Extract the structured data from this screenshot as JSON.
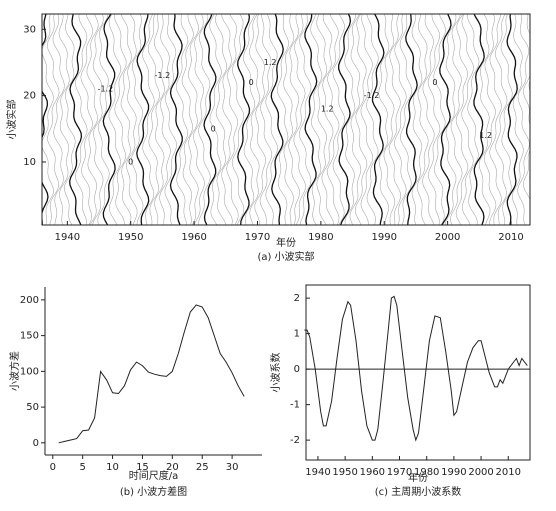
{
  "chart_data": [
    {
      "type": "contour",
      "xlabel": "年份",
      "ylabel": "小波实部",
      "caption": "(a) 小波实部",
      "xlim": [
        1936,
        2013
      ],
      "xticks": [
        1940,
        1950,
        1960,
        1970,
        1980,
        1990,
        2000,
        2010
      ],
      "ylim": [
        0.5,
        32.3
      ],
      "yticks": [
        10,
        20,
        30
      ],
      "annotations": [
        {
          "text": "-1.2",
          "x": 1946,
          "y": 21
        },
        {
          "text": "-1.2",
          "x": 1955,
          "y": 23
        },
        {
          "text": "1.2",
          "x": 1972,
          "y": 25
        },
        {
          "text": "0",
          "x": 1969,
          "y": 22
        },
        {
          "text": "0",
          "x": 1963,
          "y": 15
        },
        {
          "text": "1.2",
          "x": 1981,
          "y": 18
        },
        {
          "text": "-1.2",
          "x": 1988,
          "y": 20
        },
        {
          "text": "0",
          "x": 1998,
          "y": 22
        },
        {
          "text": "1.2",
          "x": 2006,
          "y": 14
        },
        {
          "text": "0",
          "x": 1950,
          "y": 10
        }
      ]
    },
    {
      "type": "line",
      "xlabel": "时间尺度/a",
      "ylabel": "小波方差",
      "caption": "(b) 小波方差图",
      "xlim": [
        -1.3,
        35
      ],
      "xticks": [
        0,
        5,
        10,
        15,
        20,
        25,
        30
      ],
      "ylim": [
        -17,
        218
      ],
      "yticks": [
        0,
        50,
        100,
        150,
        200
      ],
      "x": [
        1,
        2,
        3,
        4,
        5,
        6,
        7,
        8,
        9,
        10,
        11,
        12,
        13,
        14,
        15,
        16,
        17,
        18,
        19,
        20,
        21,
        22,
        23,
        24,
        25,
        26,
        27,
        28,
        29,
        30,
        31,
        32
      ],
      "series": [
        {
          "color": "#222222",
          "values": [
            0,
            2,
            4,
            6,
            17,
            18,
            35,
            100,
            88,
            70,
            69,
            80,
            102,
            113,
            108,
            99,
            96,
            94,
            93,
            100,
            125,
            155,
            183,
            193,
            190,
            175,
            150,
            125,
            113,
            98,
            80,
            65
          ]
        }
      ]
    },
    {
      "type": "line",
      "xlabel": "年份",
      "ylabel": "小波系数",
      "caption": "(c) 主周期小波系数",
      "xlim": [
        1935.6,
        2018
      ],
      "xticks": [
        1940,
        1950,
        1960,
        1970,
        1980,
        1990,
        2000,
        2010
      ],
      "ylim": [
        -2.56,
        2.37
      ],
      "yticks": [
        -2,
        -1,
        0,
        1,
        2
      ],
      "reference_line": 0,
      "x": [
        1935,
        1936,
        1937,
        1939,
        1941,
        1942,
        1943,
        1945,
        1947,
        1949,
        1951,
        1952,
        1954,
        1956,
        1958,
        1960,
        1961,
        1962,
        1964,
        1966,
        1967,
        1968,
        1969,
        1971,
        1973,
        1975,
        1976,
        1977,
        1979,
        1981,
        1983,
        1985,
        1987,
        1989,
        1990,
        1991,
        1993,
        1995,
        1997,
        1999,
        2000,
        2001,
        2003,
        2005,
        2006,
        2007,
        2008,
        2010,
        2012,
        2013,
        2014,
        2015,
        2017
      ],
      "series": [
        {
          "color": "#222222",
          "values": [
            1.1,
            1.1,
            0.9,
            0,
            -1.2,
            -1.6,
            -1.6,
            -0.9,
            0.3,
            1.4,
            1.9,
            1.8,
            0.8,
            -0.6,
            -1.6,
            -2.0,
            -2.0,
            -1.7,
            -0.3,
            1.2,
            2.0,
            2.05,
            1.8,
            0.5,
            -0.8,
            -1.7,
            -2.0,
            -1.8,
            -0.5,
            0.8,
            1.5,
            1.45,
            0.5,
            -0.6,
            -1.3,
            -1.2,
            -0.5,
            0.2,
            0.6,
            0.8,
            0.8,
            0.5,
            -0.1,
            -0.5,
            -0.5,
            -0.3,
            -0.4,
            0,
            0.2,
            0.3,
            0.1,
            0.3,
            0.1
          ]
        }
      ]
    }
  ]
}
